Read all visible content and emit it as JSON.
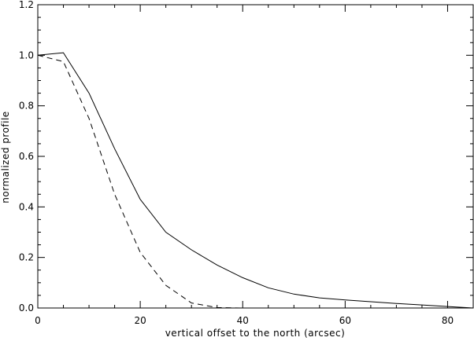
{
  "chart_data": {
    "type": "line",
    "title": "",
    "xlabel": "vertical offset to the north (arcsec)",
    "ylabel": "normalized profile",
    "xlim": [
      0,
      85
    ],
    "ylim": [
      0,
      1.2
    ],
    "x_ticks": [
      0,
      20,
      40,
      60,
      80
    ],
    "x_tick_labels": [
      "0",
      "20",
      "40",
      "60",
      "80"
    ],
    "y_ticks": [
      0.0,
      0.2,
      0.4,
      0.6,
      0.8,
      1.0,
      1.2
    ],
    "y_tick_labels": [
      "0.0",
      "0.2",
      "0.4",
      "0.6",
      "0.8",
      "1.0",
      "1.2"
    ],
    "grid": false,
    "series": [
      {
        "style": "solid",
        "x": [
          0,
          5,
          10,
          15,
          20,
          25,
          30,
          35,
          40,
          45,
          50,
          55,
          60,
          65,
          70,
          75,
          80,
          85
        ],
        "y": [
          1.0,
          1.01,
          0.85,
          0.63,
          0.43,
          0.3,
          0.23,
          0.17,
          0.12,
          0.08,
          0.055,
          0.04,
          0.032,
          0.025,
          0.018,
          0.012,
          0.006,
          0.0
        ]
      },
      {
        "style": "dashed",
        "x": [
          0,
          5,
          10,
          15,
          20,
          25,
          30,
          35,
          40,
          50,
          60,
          70,
          80,
          85
        ],
        "y": [
          1.0,
          0.975,
          0.75,
          0.45,
          0.22,
          0.09,
          0.02,
          0.002,
          0.0,
          0.0,
          0.0,
          0.0,
          0.0,
          0.0
        ]
      }
    ]
  }
}
